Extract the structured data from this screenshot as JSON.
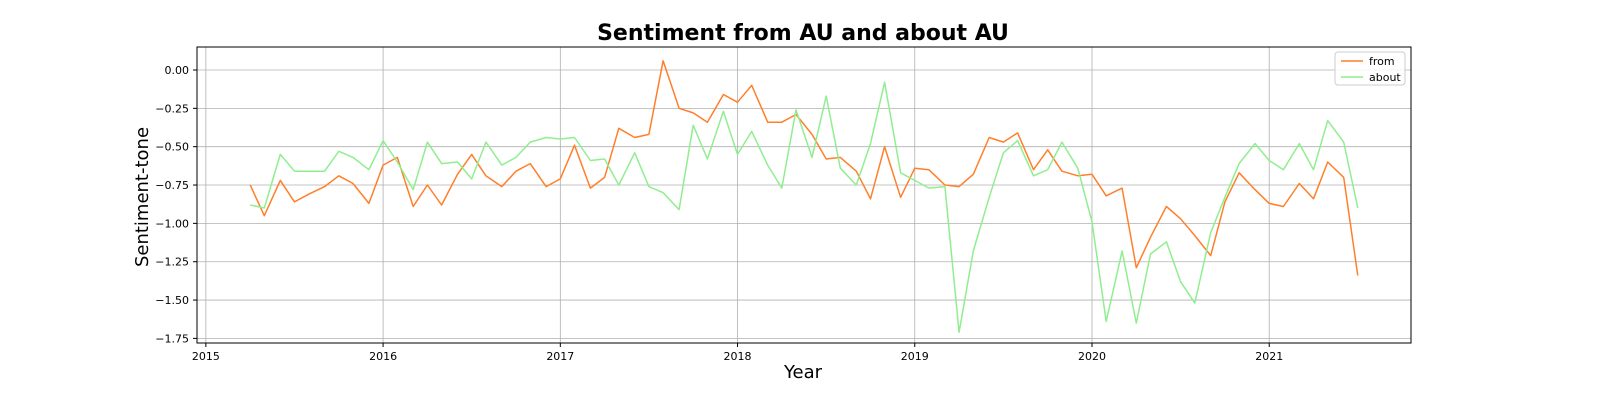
{
  "chart_data": {
    "type": "line",
    "title": "Sentiment from AU and about AU",
    "xlabel": "Year",
    "ylabel": "Sentiment-tone",
    "xlim": [
      2014.95,
      2021.8
    ],
    "ylim": [
      -1.78,
      0.15
    ],
    "xticks": [
      2015,
      2016,
      2017,
      2018,
      2019,
      2020,
      2021
    ],
    "xtick_labels": [
      "2015",
      "2016",
      "2017",
      "2018",
      "2019",
      "2020",
      "2021"
    ],
    "yticks": [
      0.0,
      -0.25,
      -0.5,
      -0.75,
      -1.0,
      -1.25,
      -1.5,
      -1.75
    ],
    "ytick_labels": [
      "0.00",
      "−0.25",
      "−0.50",
      "−0.75",
      "−1.00",
      "−1.25",
      "−1.50",
      "−1.75"
    ],
    "grid": true,
    "legend": "top-right",
    "x": [
      2015.25,
      2015.33,
      2015.42,
      2015.5,
      2015.58,
      2015.67,
      2015.75,
      2015.83,
      2015.92,
      2016.0,
      2016.08,
      2016.17,
      2016.25,
      2016.33,
      2016.42,
      2016.5,
      2016.58,
      2016.67,
      2016.75,
      2016.83,
      2016.92,
      2017.0,
      2017.08,
      2017.17,
      2017.25,
      2017.33,
      2017.42,
      2017.5,
      2017.58,
      2017.67,
      2017.75,
      2017.83,
      2017.92,
      2018.0,
      2018.08,
      2018.17,
      2018.25,
      2018.33,
      2018.42,
      2018.5,
      2018.58,
      2018.67,
      2018.75,
      2018.83,
      2018.92,
      2019.0,
      2019.08,
      2019.17,
      2019.25,
      2019.33,
      2019.42,
      2019.5,
      2019.58,
      2019.67,
      2019.75,
      2019.83,
      2019.92,
      2020.0,
      2020.08,
      2020.17,
      2020.25,
      2020.33,
      2020.42,
      2020.5,
      2020.58,
      2020.67,
      2020.75,
      2020.83,
      2020.92,
      2021.0,
      2021.08,
      2021.17,
      2021.25,
      2021.33,
      2021.42,
      2021.5
    ],
    "series": [
      {
        "name": "from",
        "color": "#ff7f2a",
        "values": [
          -0.75,
          -0.95,
          -0.72,
          -0.86,
          -0.81,
          -0.76,
          -0.69,
          -0.74,
          -0.87,
          -0.62,
          -0.57,
          -0.89,
          -0.75,
          -0.88,
          -0.68,
          -0.55,
          -0.69,
          -0.76,
          -0.66,
          -0.61,
          -0.76,
          -0.71,
          -0.49,
          -0.77,
          -0.7,
          -0.38,
          -0.44,
          -0.42,
          0.06,
          -0.25,
          -0.28,
          -0.34,
          -0.16,
          -0.21,
          -0.1,
          -0.34,
          -0.34,
          -0.29,
          -0.42,
          -0.58,
          -0.57,
          -0.66,
          -0.84,
          -0.5,
          -0.83,
          -0.64,
          -0.65,
          -0.75,
          -0.76,
          -0.68,
          -0.44,
          -0.47,
          -0.41,
          -0.65,
          -0.52,
          -0.66,
          -0.69,
          -0.68,
          -0.82,
          -0.77,
          -1.29,
          -1.09,
          -0.89,
          -0.97,
          -1.08,
          -1.21,
          -0.86,
          -0.67,
          -0.78,
          -0.87,
          -0.89,
          -0.74,
          -0.84,
          -0.6,
          -0.7,
          -1.34
        ]
      },
      {
        "name": "about",
        "color": "#90ee90",
        "values": [
          -0.88,
          -0.9,
          -0.55,
          -0.66,
          -0.66,
          -0.66,
          -0.53,
          -0.57,
          -0.65,
          -0.46,
          -0.6,
          -0.78,
          -0.47,
          -0.61,
          -0.6,
          -0.71,
          -0.47,
          -0.62,
          -0.57,
          -0.47,
          -0.44,
          -0.45,
          -0.44,
          -0.59,
          -0.58,
          -0.75,
          -0.54,
          -0.76,
          -0.8,
          -0.91,
          -0.36,
          -0.58,
          -0.27,
          -0.55,
          -0.4,
          -0.62,
          -0.77,
          -0.26,
          -0.57,
          -0.17,
          -0.64,
          -0.75,
          -0.48,
          -0.08,
          -0.67,
          -0.72,
          -0.77,
          -0.76,
          -1.71,
          -1.18,
          -0.83,
          -0.54,
          -0.46,
          -0.69,
          -0.65,
          -0.47,
          -0.64,
          -0.99,
          -1.64,
          -1.18,
          -1.65,
          -1.2,
          -1.12,
          -1.38,
          -1.52,
          -1.06,
          -0.83,
          -0.61,
          -0.48,
          -0.59,
          -0.65,
          -0.48,
          -0.65,
          -0.33,
          -0.47,
          -0.9
        ]
      }
    ]
  }
}
